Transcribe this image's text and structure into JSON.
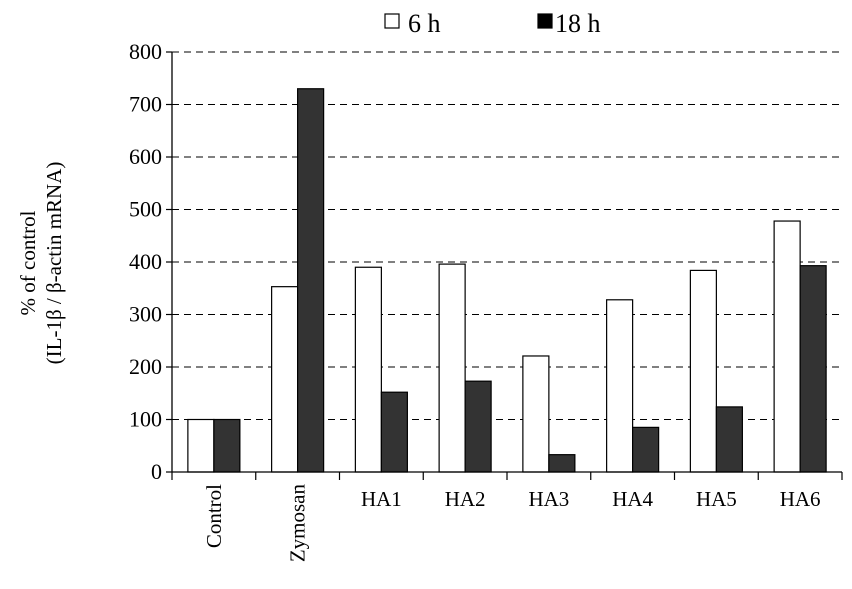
{
  "chart_data": {
    "type": "bar",
    "categories": [
      "Control",
      "Zymosan",
      "HA1",
      "HA2",
      "HA3",
      "HA4",
      "HA5",
      "HA6"
    ],
    "series": [
      {
        "name": "6 h",
        "color": "#ffffff",
        "values": [
          100,
          353,
          390,
          396,
          221,
          328,
          384,
          478
        ]
      },
      {
        "name": "18 h",
        "color": "#333333",
        "values": [
          100,
          730,
          152,
          173,
          33,
          85,
          124,
          393
        ]
      }
    ],
    "title": "",
    "xlabel": "",
    "ylabel_line1": "% of control",
    "ylabel_line2": "(IL-1β / β-actin mRNA)",
    "ylim": [
      0,
      800
    ],
    "yticks": [
      0,
      100,
      200,
      300,
      400,
      500,
      600,
      700,
      800
    ],
    "grid": "horizontal dashed",
    "legend_position": "top"
  }
}
